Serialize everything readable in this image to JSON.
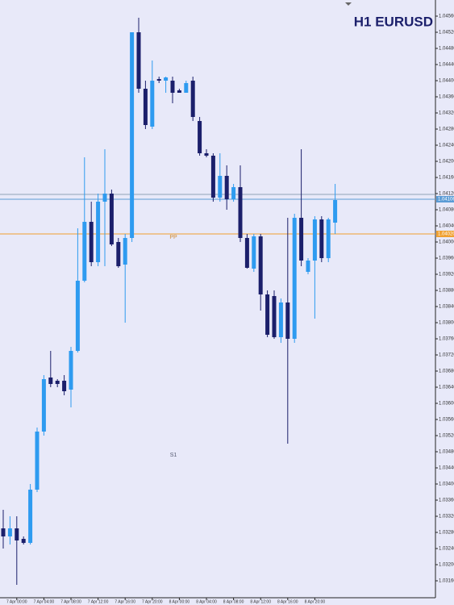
{
  "chart_data": {
    "type": "candlestick",
    "title": "H1 EURUSD",
    "bull_color": "#2e9bf0",
    "bear_color": "#1b1f6b",
    "categories": [
      null,
      null,
      "7 Apr 00:00",
      null,
      null,
      null,
      "7 Apr 04:00",
      null,
      null,
      null,
      "7 Apr 08:00",
      null,
      null,
      null,
      "7 Apr 12:00",
      null,
      null,
      null,
      "7 Apr 16:00",
      null,
      null,
      null,
      "7 Apr 20:00",
      null,
      null,
      null,
      "8 Apr 00:00",
      null,
      null,
      null,
      "8 Apr 04:00",
      null,
      null,
      null,
      "8 Apr 08:00",
      null,
      null,
      null,
      "8 Apr 12:00",
      null,
      null,
      null,
      "8 Apr 16:00",
      null,
      null,
      null,
      "8 Apr 20:00",
      null,
      null,
      null
    ],
    "open": [
      1.0329,
      1.0327,
      1.0329,
      1.03264,
      1.03254,
      1.03386,
      1.0353,
      1.03664,
      1.03656,
      1.03656,
      1.03634,
      1.0373,
      1.03904,
      1.0405,
      1.0395,
      1.041,
      1.0412,
      1.04,
      1.03944,
      1.0401,
      1.0452,
      1.0438,
      1.04286,
      1.04404,
      1.044,
      1.044,
      1.04376,
      1.0437,
      1.044,
      1.043,
      1.0422,
      1.04214,
      1.0411,
      1.04164,
      1.04106,
      1.04136,
      1.0401,
      1.03934,
      1.04014,
      1.0387,
      1.03866,
      1.03764,
      1.0385,
      1.0376,
      1.0406,
      1.03926,
      1.03954,
      1.04056,
      1.0396,
      1.04048
    ],
    "high": [
      1.03336,
      1.0332,
      1.0332,
      1.0327,
      1.034,
      1.0354,
      1.0367,
      1.0373,
      1.0366,
      1.0367,
      1.0374,
      1.04034,
      1.0421,
      1.041,
      1.0412,
      1.0423,
      1.0413,
      1.0401,
      1.0402,
      1.0452,
      1.04556,
      1.044,
      1.0445,
      1.0441,
      1.0441,
      1.0441,
      1.0438,
      1.044,
      1.0441,
      1.0431,
      1.0423,
      1.0422,
      1.0422,
      1.0419,
      1.04144,
      1.0419,
      1.0402,
      1.0402,
      1.0402,
      1.0388,
      1.0388,
      1.0386,
      1.0406,
      1.0407,
      1.0423,
      1.0396,
      1.04064,
      1.04064,
      1.0406,
      1.04144
    ],
    "low": [
      1.0324,
      1.0325,
      1.0315,
      1.0325,
      1.0325,
      1.0338,
      1.0352,
      1.0364,
      1.0364,
      1.0362,
      1.0359,
      1.03726,
      1.039,
      1.0394,
      1.0394,
      1.0394,
      1.0399,
      1.03936,
      1.038,
      1.04,
      1.0437,
      1.0428,
      1.0428,
      1.04394,
      1.0437,
      1.04344,
      1.0437,
      1.0437,
      1.043,
      1.04214,
      1.0421,
      1.041,
      1.041,
      1.0408,
      1.041,
      1.04,
      1.03934,
      1.03926,
      1.0383,
      1.03764,
      1.0376,
      1.0375,
      1.035,
      1.0375,
      1.0394,
      1.0392,
      1.0381,
      1.0395,
      1.0395,
      1.0402
    ],
    "close": [
      1.0327,
      1.0329,
      1.0326,
      1.03254,
      1.03386,
      1.0353,
      1.0366,
      1.03648,
      1.03648,
      1.0363,
      1.0373,
      1.03904,
      1.0405,
      1.0395,
      1.041,
      1.0412,
      1.03994,
      1.0394,
      1.0401,
      1.0452,
      1.0438,
      1.0429,
      1.044,
      1.044,
      1.04408,
      1.0437,
      1.0437,
      1.04394,
      1.0431,
      1.0422,
      1.04214,
      1.0411,
      1.04164,
      1.04106,
      1.04136,
      1.0401,
      1.03936,
      1.04014,
      1.0387,
      1.0377,
      1.03764,
      1.0385,
      1.0376,
      1.0406,
      1.03954,
      1.03954,
      1.04056,
      1.0396,
      1.04056,
      1.04104
    ],
    "ylim": [
      1.0312,
      1.046
    ],
    "yticks": [
      {
        "value": 1.0316,
        "label": "1.03160"
      },
      {
        "value": 1.032,
        "label": "1.03200"
      },
      {
        "value": 1.0324,
        "label": "1.03240"
      },
      {
        "value": 1.0328,
        "label": "1.03280"
      },
      {
        "value": 1.0332,
        "label": "1.03320"
      },
      {
        "value": 1.0336,
        "label": "1.03360"
      },
      {
        "value": 1.034,
        "label": "1.03400"
      },
      {
        "value": 1.0344,
        "label": "1.03440"
      },
      {
        "value": 1.0348,
        "label": "1.03480"
      },
      {
        "value": 1.0352,
        "label": "1.03520"
      },
      {
        "value": 1.0356,
        "label": "1.03560"
      },
      {
        "value": 1.036,
        "label": "1.03600"
      },
      {
        "value": 1.0364,
        "label": "1.03640"
      },
      {
        "value": 1.0368,
        "label": "1.03680"
      },
      {
        "value": 1.0372,
        "label": "1.03720"
      },
      {
        "value": 1.0376,
        "label": "1.03760"
      },
      {
        "value": 1.038,
        "label": "1.03800"
      },
      {
        "value": 1.0384,
        "label": "1.03840"
      },
      {
        "value": 1.0388,
        "label": "1.03880"
      },
      {
        "value": 1.0392,
        "label": "1.03920"
      },
      {
        "value": 1.0396,
        "label": "1.03960"
      },
      {
        "value": 1.04,
        "label": "1.04000"
      },
      {
        "value": 1.0404,
        "label": "1.04040"
      },
      {
        "value": 1.0408,
        "label": "1.04080"
      },
      {
        "value": 1.0412,
        "label": "1.04120"
      },
      {
        "value": 1.0416,
        "label": "1.04160"
      },
      {
        "value": 1.042,
        "label": "1.04200"
      },
      {
        "value": 1.0424,
        "label": "1.04240"
      },
      {
        "value": 1.0428,
        "label": "1.04280"
      },
      {
        "value": 1.0432,
        "label": "1.04320"
      },
      {
        "value": 1.0436,
        "label": "1.04360"
      },
      {
        "value": 1.044,
        "label": "1.04400"
      },
      {
        "value": 1.0444,
        "label": "1.04440"
      },
      {
        "value": 1.0448,
        "label": "1.04480"
      },
      {
        "value": 1.0452,
        "label": "1.04520"
      },
      {
        "value": 1.0456,
        "label": "1.04560"
      }
    ],
    "price_lines": [
      {
        "value": 1.04118,
        "color": "#8fa3b8"
      },
      {
        "value": 1.04106,
        "color": "#5b9bd5",
        "label": "1.04106"
      },
      {
        "value": 1.0402,
        "color": "#f0a030",
        "label": "1.04020"
      }
    ],
    "levels": [
      {
        "name": "PP",
        "value": 1.0402,
        "color": "#d08a30"
      },
      {
        "name": "S1",
        "value": 1.0348,
        "color": "#555a70"
      }
    ]
  }
}
